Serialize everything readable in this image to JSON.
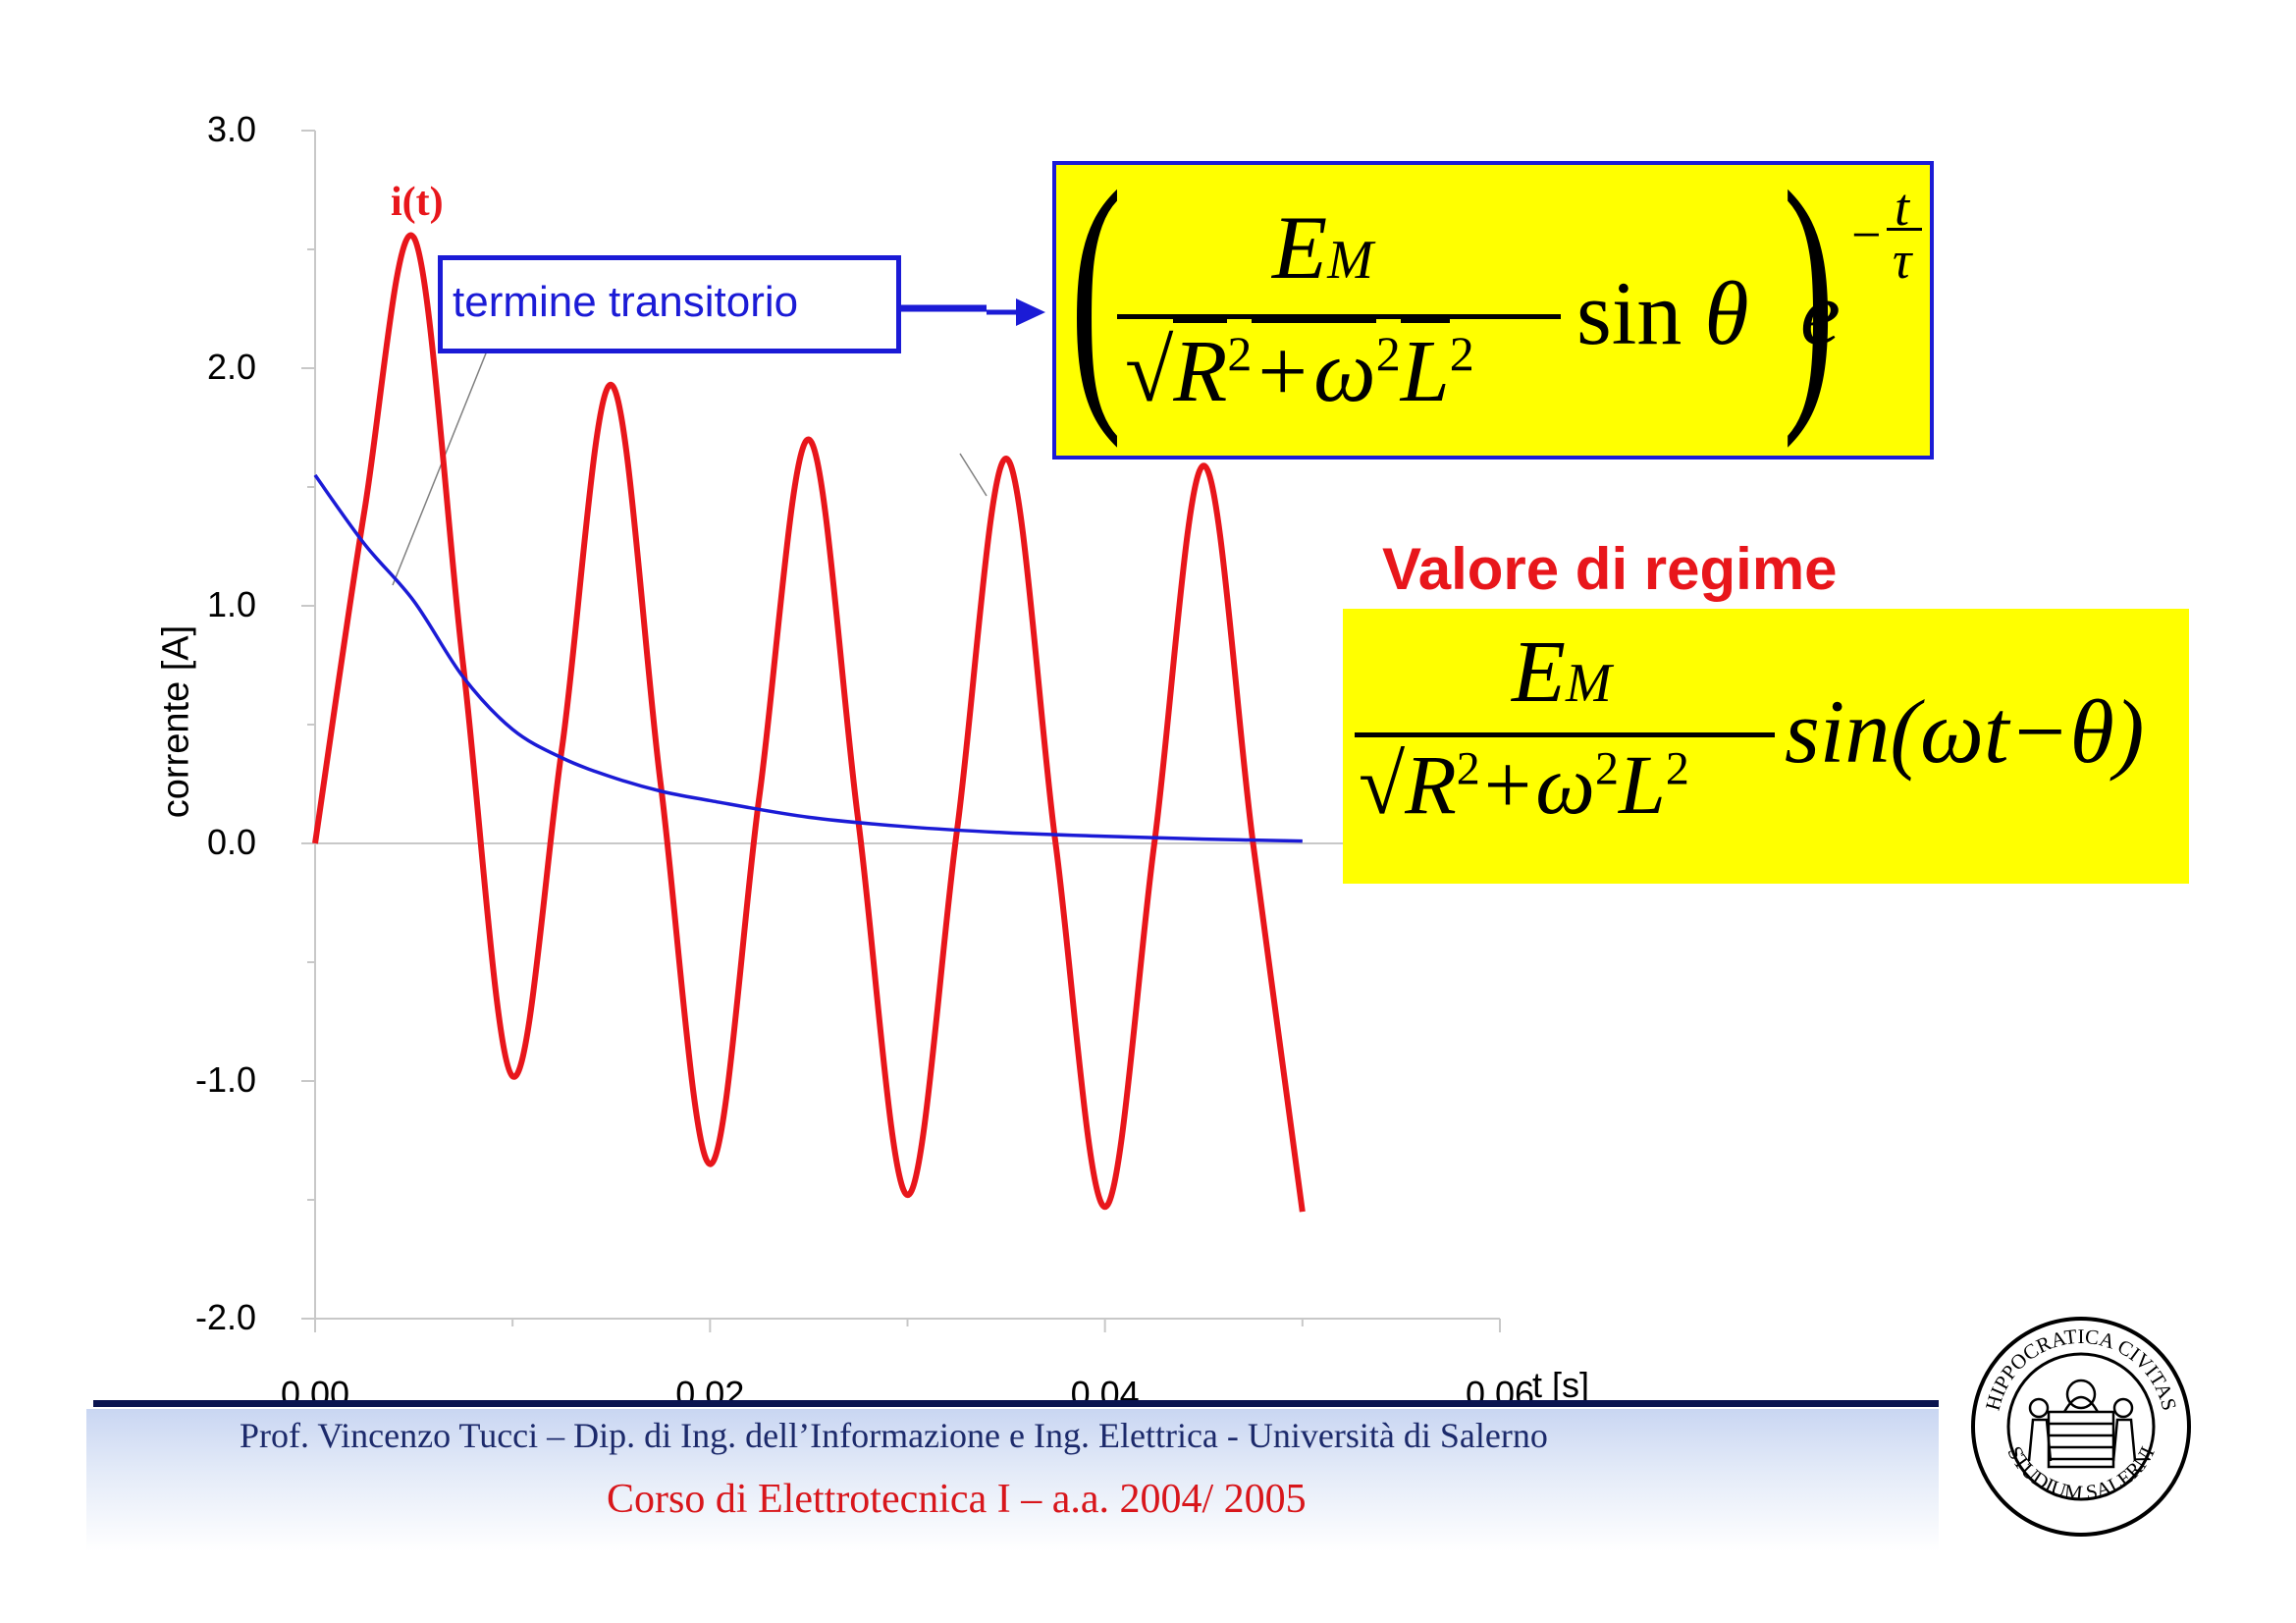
{
  "chart_data": {
    "type": "line",
    "ylabel": "corrente [A]",
    "xlabel": "t [s]",
    "xlim": [
      0,
      0.06
    ],
    "ylim": [
      -2.0,
      3.0
    ],
    "x_ticks": [
      "0.00",
      "0.02",
      "0.04",
      "0.06"
    ],
    "y_ticks": [
      "3.0",
      "2.0",
      "1.0",
      "0.0",
      "-1.0",
      "-2.0"
    ],
    "series": [
      {
        "name": "i(t)",
        "color": "#e8161b",
        "x": [
          0,
          0.0025,
          0.005,
          0.0075,
          0.01,
          0.0125,
          0.015,
          0.0175,
          0.02,
          0.0225,
          0.025,
          0.0275,
          0.03,
          0.0325,
          0.035,
          0.0375,
          0.04,
          0.0425,
          0.045,
          0.0475,
          0.05
        ],
        "y": [
          0,
          1.4,
          2.55,
          0.75,
          -0.98,
          0.4,
          1.93,
          0.25,
          -1.35,
          0.2,
          1.7,
          0.1,
          -1.48,
          0.05,
          1.62,
          0.0,
          -1.53,
          0.0,
          1.59,
          0.0,
          -1.55
        ]
      },
      {
        "name": "termine transitorio",
        "color": "#1b1bd6",
        "x": [
          0,
          0.0025,
          0.005,
          0.0075,
          0.01,
          0.0125,
          0.015,
          0.0175,
          0.02,
          0.025,
          0.03,
          0.035,
          0.04,
          0.045,
          0.05
        ],
        "y": [
          1.55,
          1.26,
          1.02,
          0.7,
          0.48,
          0.36,
          0.28,
          0.22,
          0.18,
          0.11,
          0.07,
          0.045,
          0.03,
          0.018,
          0.01
        ]
      }
    ]
  },
  "labels": {
    "it": "i(t)",
    "transient_box": "termine transitorio",
    "regime_title": "Valore di regime"
  },
  "formula1": {
    "numerator": "E",
    "numerator_sub": "M",
    "den_R": "R",
    "den_2a": "2",
    "den_plus": "+",
    "den_omega": "ω",
    "den_2b": "2",
    "den_L": "L",
    "den_2c": "2",
    "sin": "sin",
    "theta": "θ",
    "e": "e",
    "exp_minus": "−",
    "exp_t": "t",
    "exp_tau": "τ"
  },
  "formula2": {
    "numerator": "E",
    "numerator_sub": "M",
    "den_R": "R",
    "den_2a": "2",
    "den_plus": "+",
    "den_omega": "ω",
    "den_2b": "2",
    "den_L": "L",
    "den_2c": "2",
    "rhs": "sin(ωt−θ)"
  },
  "footer": {
    "line1": "Prof. Vincenzo Tucci – Dip. di Ing. dell’Informazione e Ing. Elettrica - Università di Salerno",
    "line2": "Corso di Elettrotecnica I –  a.a.  2004/ 2005"
  },
  "seal": {
    "top_text": "HIPPOCRATICA CIVITAS",
    "bottom_text": "STUDIUM SALERNI"
  },
  "colors": {
    "red": "#e8161b",
    "blue": "#1b1bd6",
    "yellow": "#ffff00",
    "navy": "#0a1450"
  }
}
